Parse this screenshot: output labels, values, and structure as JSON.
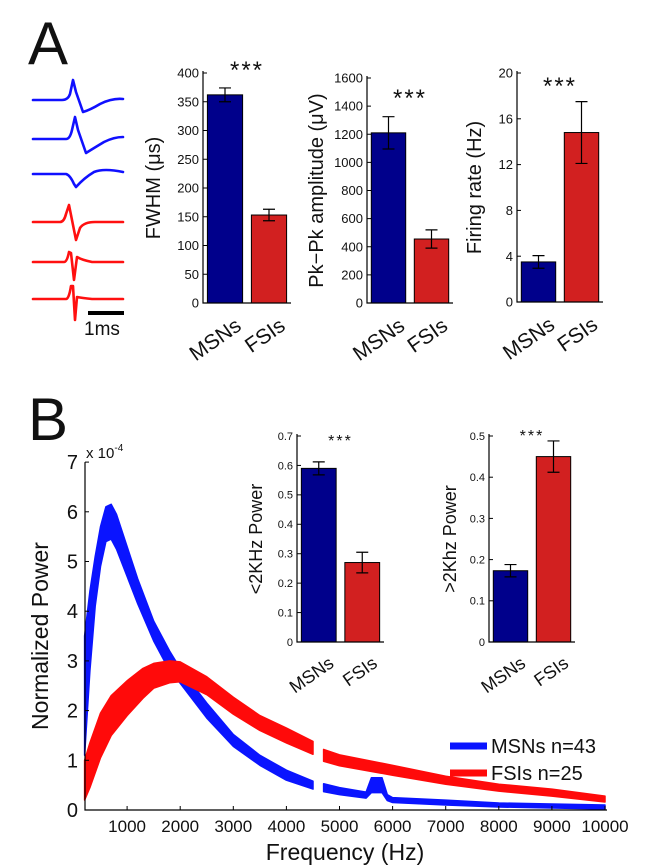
{
  "panel_labels": {
    "a": "A",
    "b": "B"
  },
  "waveforms": {
    "scale_bar_label": "1ms",
    "colors": {
      "MSNs": "#1010ff",
      "FSIs": "#ff1010"
    }
  },
  "colors": {
    "MSNs_bar": "#00008b",
    "FSIs_bar": "#d22020",
    "MSNs_line": "#0a14ff",
    "FSIs_line": "#ff0a0a"
  },
  "chart_data": [
    {
      "type": "bar",
      "id": "fwhm",
      "ylabel": "FWHM (μs)",
      "categories": [
        "MSNs",
        "FSIs"
      ],
      "values": [
        362,
        153
      ],
      "errors": [
        12,
        10
      ],
      "ylim": [
        0,
        400
      ],
      "yticks": [
        0,
        50,
        100,
        150,
        200,
        250,
        300,
        350,
        400
      ],
      "annotation": "***"
    },
    {
      "type": "bar",
      "id": "pkpk",
      "ylabel": "Pk−Pk amplitude (μV)",
      "categories": [
        "MSNs",
        "FSIs"
      ],
      "values": [
        1210,
        455
      ],
      "errors": [
        115,
        65
      ],
      "ylim": [
        0,
        1600
      ],
      "yticks": [
        0,
        200,
        400,
        600,
        800,
        1000,
        1200,
        1400,
        1600
      ],
      "annotation": "***"
    },
    {
      "type": "bar",
      "id": "rate",
      "ylabel": "Firing rate (Hz)",
      "categories": [
        "MSNs",
        "FSIs"
      ],
      "values": [
        3.5,
        14.8
      ],
      "errors": [
        0.55,
        2.7
      ],
      "ylim": [
        0,
        20
      ],
      "yticks": [
        0,
        4,
        8,
        12,
        16,
        20
      ],
      "annotation": "***"
    },
    {
      "type": "bar",
      "id": "low",
      "ylabel": "<2KHz Power",
      "categories": [
        "MSNs",
        "FSIs"
      ],
      "values": [
        0.59,
        0.27
      ],
      "errors": [
        0.022,
        0.035
      ],
      "ylim": [
        0,
        0.7
      ],
      "yticks": [
        0,
        0.1,
        0.2,
        0.3,
        0.4,
        0.5,
        0.6,
        0.7
      ],
      "annotation": "***"
    },
    {
      "type": "bar",
      "id": "high",
      "ylabel": ">2Khz Power",
      "categories": [
        "MSNs",
        "FSIs"
      ],
      "values": [
        0.173,
        0.45
      ],
      "errors": [
        0.015,
        0.038
      ],
      "ylim": [
        0,
        0.5
      ],
      "yticks": [
        0,
        0.1,
        0.2,
        0.3,
        0.4,
        0.5
      ],
      "annotation": "***"
    },
    {
      "type": "area",
      "id": "spectrum",
      "xlabel": "Frequency (Hz)",
      "ylabel": "Normalized Power",
      "y_multiplier": "x 10",
      "y_exponent": "-4",
      "xlim": [
        200,
        10000
      ],
      "ylim": [
        0,
        7
      ],
      "xticks": [
        1000,
        2000,
        3000,
        4000,
        5000,
        6000,
        7000,
        8000,
        9000,
        10000
      ],
      "yticks": [
        0,
        1,
        2,
        3,
        4,
        5,
        6,
        7
      ],
      "legend_position": "bottom-right",
      "series": [
        {
          "name": "MSNs n=43",
          "x": [
            200,
            300,
            400,
            500,
            600,
            700,
            800,
            1000,
            1200,
            1500,
            1800,
            2000,
            2500,
            3000,
            3500,
            4000,
            4500,
            null,
            4700,
            5000,
            5500,
            5600,
            5800,
            5900,
            6000,
            7000,
            8000,
            9000,
            10000
          ],
          "mean": [
            2.3,
            3.6,
            4.6,
            5.3,
            5.75,
            5.8,
            5.6,
            5.0,
            4.4,
            3.6,
            3.0,
            2.7,
            2.0,
            1.4,
            1.0,
            0.7,
            0.5,
            null,
            0.45,
            0.38,
            0.3,
            0.5,
            0.5,
            0.25,
            0.2,
            0.15,
            0.1,
            0.08,
            0.06
          ],
          "error": [
            1.2,
            0.8,
            0.5,
            0.4,
            0.35,
            0.35,
            0.35,
            0.3,
            0.25,
            0.2,
            0.2,
            0.15,
            0.15,
            0.12,
            0.1,
            0.1,
            0.08,
            null,
            0.08,
            0.07,
            0.06,
            0.15,
            0.15,
            0.06,
            0.05,
            0.05,
            0.04,
            0.04,
            0.04
          ]
        },
        {
          "name": "FSIs n=25",
          "x": [
            200,
            300,
            500,
            700,
            1000,
            1300,
            1500,
            1800,
            2000,
            2500,
            3000,
            3500,
            4000,
            4500,
            null,
            4700,
            5000,
            6000,
            7000,
            8000,
            9000,
            10000
          ],
          "mean": [
            0.6,
            0.9,
            1.5,
            1.9,
            2.25,
            2.55,
            2.7,
            2.78,
            2.78,
            2.5,
            2.1,
            1.75,
            1.5,
            1.25,
            null,
            1.1,
            1.0,
            0.8,
            0.6,
            0.45,
            0.35,
            0.22
          ],
          "error": [
            0.4,
            0.45,
            0.45,
            0.4,
            0.35,
            0.3,
            0.25,
            0.22,
            0.2,
            0.18,
            0.17,
            0.15,
            0.15,
            0.13,
            null,
            0.12,
            0.11,
            0.1,
            0.08,
            0.07,
            0.07,
            0.06
          ]
        }
      ]
    }
  ]
}
